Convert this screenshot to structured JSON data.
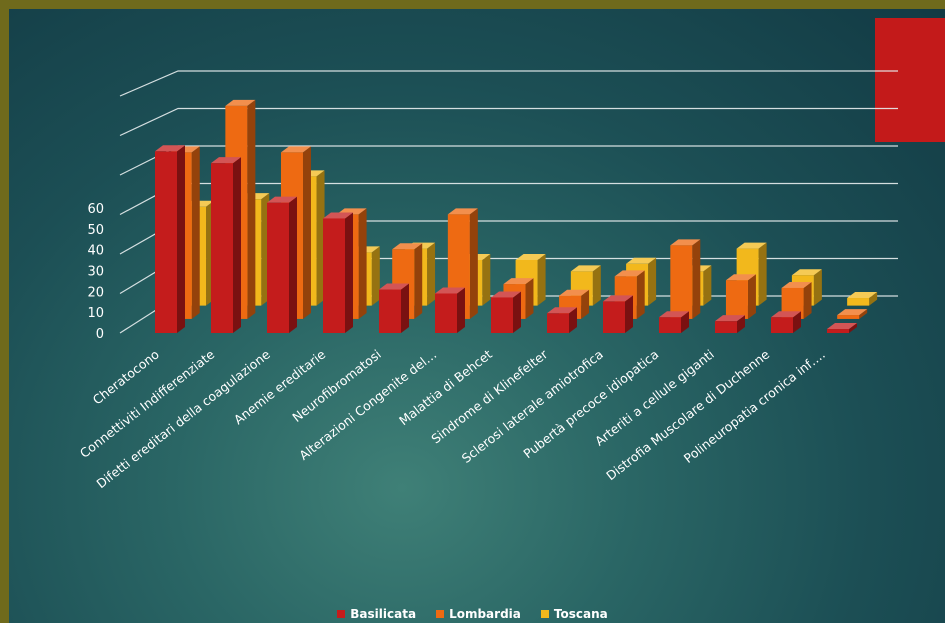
{
  "colors": {
    "accent_block": "#c31a1a",
    "grid": "#e9eef0",
    "Basilicata": "#c41c1c",
    "Lombardia": "#ee6a12",
    "Toscana": "#f2b81c"
  },
  "chart_data": {
    "type": "bar",
    "style": "3d-clustered-column",
    "title": "",
    "xlabel": "",
    "ylabel": "",
    "ylim": [
      0,
      60
    ],
    "yticks": [
      "0",
      "10",
      "20",
      "30",
      "40",
      "50",
      "60"
    ],
    "grid": true,
    "legend_position": "bottom",
    "categories": [
      "Cheratocono",
      "Connettiviti Indifferenziate",
      "Difetti ereditari della coagulazione",
      "Anemie ereditarie",
      "Neurofibromatosi",
      "Alterazioni Congenite del…",
      "Malattia di Behcet",
      "Sindrome di Klinefelter",
      "Sclerosi laterale amiotrofica",
      "Pubertà precoce idiopatica",
      "Arteriti a cellule giganti",
      "Distrofia Muscolare di Duchenne",
      "Polineuropatia cronica inf…."
    ],
    "series": [
      {
        "name": "Basilicata",
        "values": [
          46,
          43,
          33,
          29,
          11,
          10,
          9,
          5,
          8,
          4,
          3,
          4,
          1
        ]
      },
      {
        "name": "Lombardia",
        "values": [
          43,
          55,
          43,
          27,
          18,
          27,
          9,
          6,
          11,
          19,
          10,
          8,
          1
        ]
      },
      {
        "name": "Toscana",
        "values": [
          26,
          28,
          34,
          14,
          15,
          12,
          12,
          9,
          11,
          9,
          15,
          8,
          2
        ]
      }
    ]
  },
  "legend": [
    {
      "label": "Basilicata"
    },
    {
      "label": "Lombardia"
    },
    {
      "label": "Toscana"
    }
  ]
}
